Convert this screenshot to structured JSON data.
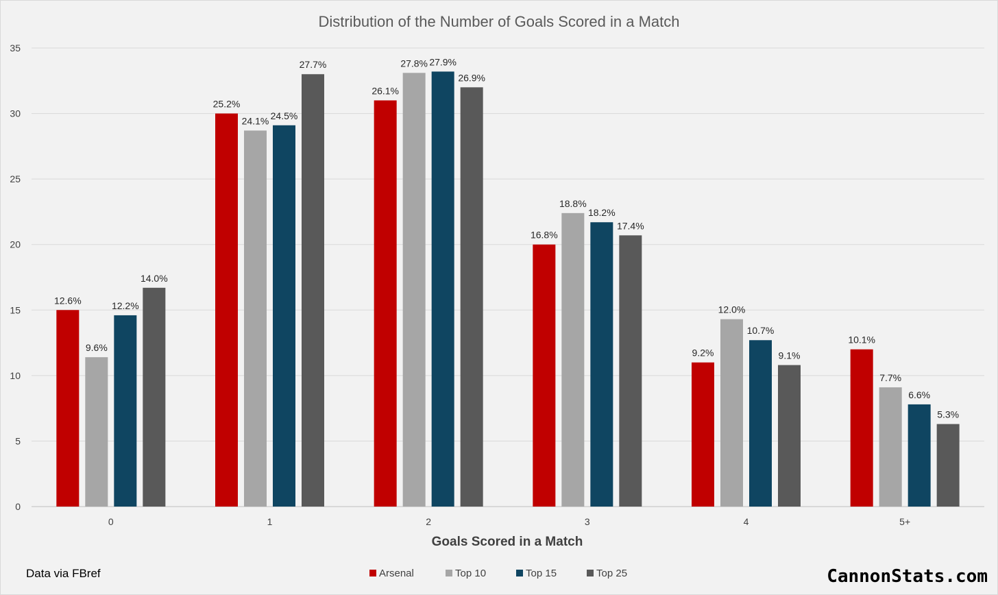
{
  "chart_data": {
    "type": "bar",
    "title": "Distribution of the Number of Goals Scored in a Match",
    "xlabel": "Goals Scored in a Match",
    "ylabel": "",
    "ylim": [
      0,
      35
    ],
    "yticks": [
      "0",
      "5",
      "10",
      "15",
      "20",
      "25",
      "30",
      "35"
    ],
    "ytick_values": [
      0,
      5,
      10,
      15,
      20,
      25,
      30,
      35
    ],
    "grid": true,
    "legend_position": "bottom",
    "categories": [
      "0",
      "1",
      "2",
      "3",
      "4",
      "5+"
    ],
    "series": [
      {
        "name": "Arsenal",
        "color": "#c00000",
        "values": [
          15,
          30,
          31,
          20,
          11,
          12
        ],
        "labels": [
          "12.6%",
          "25.2%",
          "26.1%",
          "16.8%",
          "9.2%",
          "10.1%"
        ]
      },
      {
        "name": "Top 10",
        "color": "#a6a6a6",
        "values": [
          11.4,
          28.7,
          33.1,
          22.4,
          14.3,
          9.1
        ],
        "labels": [
          "9.6%",
          "24.1%",
          "27.8%",
          "18.8%",
          "12.0%",
          "7.7%"
        ]
      },
      {
        "name": "Top 15",
        "color": "#0f4561",
        "values": [
          14.6,
          29.1,
          33.2,
          21.7,
          12.7,
          7.8
        ],
        "labels": [
          "12.2%",
          "24.5%",
          "27.9%",
          "18.2%",
          "10.7%",
          "6.6%"
        ]
      },
      {
        "name": "Top 25",
        "color": "#595959",
        "values": [
          16.7,
          33.0,
          32.0,
          20.7,
          10.8,
          6.3
        ],
        "labels": [
          "14.0%",
          "27.7%",
          "26.9%",
          "17.4%",
          "9.1%",
          "5.3%"
        ]
      }
    ]
  },
  "footer": {
    "source": "Data via FBref",
    "brand": "CannonStats.com"
  }
}
